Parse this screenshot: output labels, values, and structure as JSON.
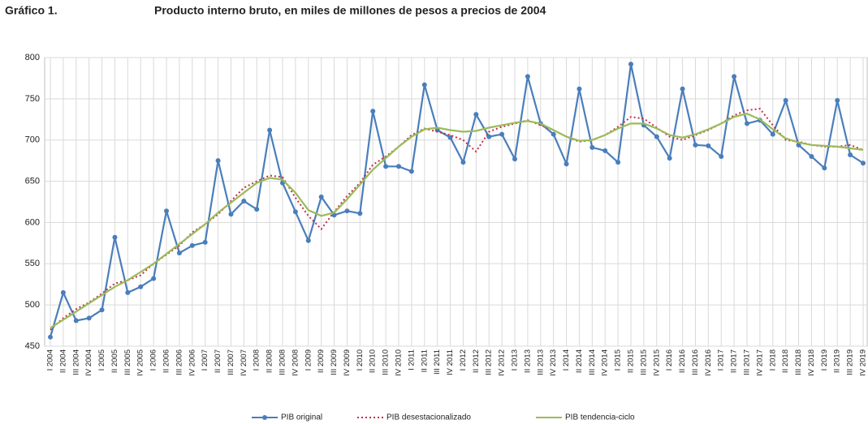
{
  "chart_data": {
    "type": "line",
    "label": "Gráfico 1.",
    "title": "Producto interno bruto, en miles de millones de pesos a precios de 2004",
    "categories": [
      "I 2004",
      "II 2004",
      "III 2004",
      "IV 2004",
      "I 2005",
      "II 2005",
      "III 2005",
      "IV 2005",
      "I 2006",
      "II 2006",
      "III 2006",
      "IV 2006",
      "I 2007",
      "II 2007",
      "III 2007",
      "IV 2007",
      "I 2008",
      "II 2008",
      "III 2008",
      "IV 2008",
      "I 2009",
      "II 2009",
      "III 2009",
      "IV 2009",
      "I 2010",
      "II 2010",
      "III 2010",
      "IV 2010",
      "I 2011",
      "II 2011",
      "III 2011",
      "IV 2011",
      "I 2012",
      "II 2012",
      "III 2012",
      "IV 2012",
      "I 2013",
      "II 2013",
      "III 2013",
      "IV 2013",
      "I 2014",
      "II 2014",
      "III 2014",
      "IV 2014",
      "I 2015",
      "II 2015",
      "III 2015",
      "IV 2015",
      "I 2016",
      "II 2016",
      "III 2016",
      "IV 2016",
      "I 2017",
      "II 2017",
      "III 2017",
      "IV 2017",
      "I 2018",
      "II 2018",
      "III 2018",
      "IV 2018",
      "I 2019",
      "II 2019",
      "III 2019",
      "IV 2019"
    ],
    "series": [
      {
        "name": "PIB original",
        "color": "#4a7ebb",
        "markers": true,
        "dash": "solid",
        "values": [
          461,
          515,
          481,
          484,
          494,
          582,
          515,
          522,
          532,
          614,
          563,
          572,
          576,
          675,
          610,
          626,
          616,
          712,
          648,
          613,
          578,
          631,
          609,
          614,
          611,
          735,
          668,
          668,
          662,
          767,
          712,
          703,
          673,
          731,
          704,
          707,
          677,
          777,
          720,
          707,
          671,
          762,
          691,
          687,
          673,
          792,
          718,
          704,
          678,
          762,
          694,
          693,
          680,
          777,
          720,
          724,
          707,
          748,
          694,
          680,
          666,
          748,
          682,
          672
        ]
      },
      {
        "name": "PIB desestacionalizado",
        "color": "#c0304a",
        "markers": false,
        "dash": "dotted",
        "values": [
          470,
          484,
          495,
          503,
          514,
          526,
          530,
          536,
          550,
          561,
          572,
          588,
          598,
          610,
          626,
          642,
          650,
          657,
          655,
          630,
          608,
          592,
          613,
          632,
          648,
          670,
          680,
          692,
          706,
          714,
          710,
          706,
          700,
          686,
          710,
          716,
          720,
          724,
          718,
          712,
          704,
          698,
          700,
          706,
          716,
          728,
          726,
          715,
          704,
          700,
          706,
          712,
          720,
          730,
          736,
          738,
          718,
          700,
          698,
          694,
          692,
          692,
          694,
          688
        ]
      },
      {
        "name": "PIB tendencia-ciclo",
        "color": "#9bbb59",
        "markers": false,
        "dash": "solid",
        "values": [
          472,
          482,
          492,
          502,
          512,
          522,
          530,
          540,
          550,
          562,
          574,
          586,
          598,
          612,
          624,
          636,
          648,
          654,
          652,
          636,
          615,
          608,
          612,
          628,
          646,
          664,
          678,
          692,
          704,
          713,
          715,
          712,
          710,
          711,
          715,
          718,
          721,
          723,
          720,
          712,
          704,
          699,
          700,
          706,
          714,
          720,
          720,
          714,
          706,
          703,
          707,
          713,
          720,
          728,
          732,
          725,
          713,
          702,
          697,
          694,
          693,
          692,
          690,
          688
        ]
      }
    ],
    "ylim": [
      450,
      800
    ],
    "yticks": [
      450,
      500,
      550,
      600,
      650,
      700,
      750,
      800
    ],
    "grid": true,
    "legend": "bottom"
  }
}
